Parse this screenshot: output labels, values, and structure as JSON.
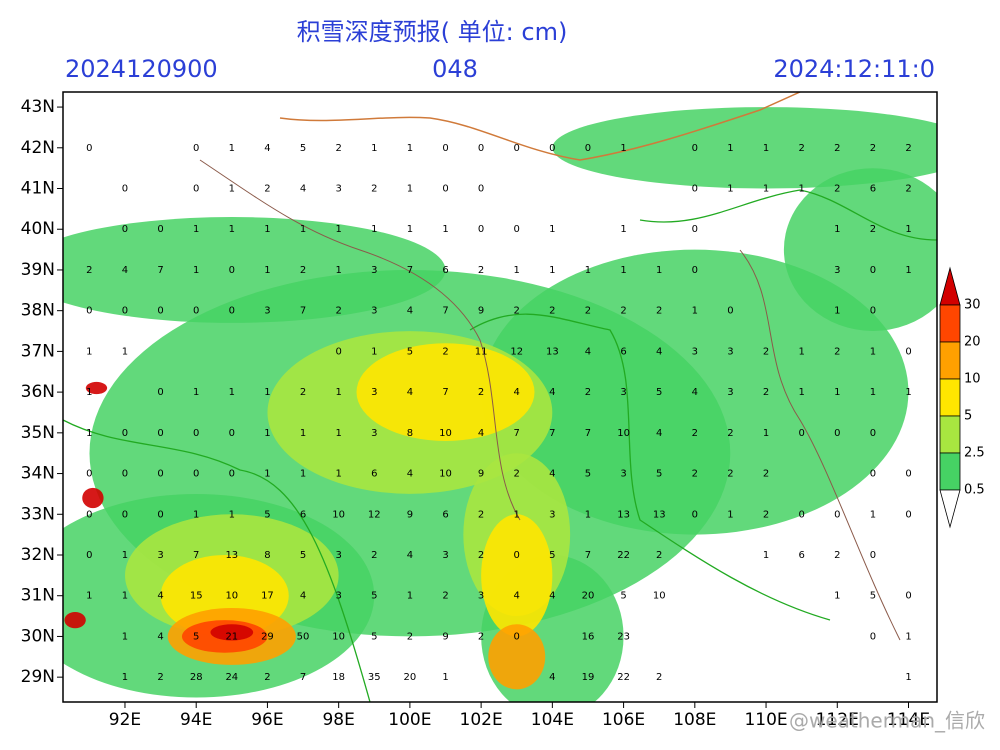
{
  "header": {
    "title": "积雪深度预报( 单位: cm)",
    "init_time": "2024120900",
    "lead_hours": "048",
    "valid_time": "2024:12:11:0"
  },
  "map": {
    "lonlim": [
      90.26,
      114.8
    ],
    "latlim": [
      28.39,
      43.37
    ],
    "lonticks": [
      {
        "value": 92,
        "label": "92E"
      },
      {
        "value": 94,
        "label": "94E"
      },
      {
        "value": 96,
        "label": "96E"
      },
      {
        "value": 98,
        "label": "98E"
      },
      {
        "value": 100,
        "label": "100E"
      },
      {
        "value": 102,
        "label": "102E"
      },
      {
        "value": 104,
        "label": "104E"
      },
      {
        "value": 106,
        "label": "106E"
      },
      {
        "value": 108,
        "label": "108E"
      },
      {
        "value": 110,
        "label": "110E"
      },
      {
        "value": 112,
        "label": "112E"
      },
      {
        "value": 114,
        "label": "114E"
      }
    ],
    "latticks": [
      {
        "value": 29,
        "label": "29N"
      },
      {
        "value": 30,
        "label": "30N"
      },
      {
        "value": 31,
        "label": "31N"
      },
      {
        "value": 32,
        "label": "32N"
      },
      {
        "value": 33,
        "label": "33N"
      },
      {
        "value": 34,
        "label": "34N"
      },
      {
        "value": 35,
        "label": "35N"
      },
      {
        "value": 36,
        "label": "36N"
      },
      {
        "value": 37,
        "label": "37N"
      },
      {
        "value": 38,
        "label": "38N"
      },
      {
        "value": 39,
        "label": "39N"
      },
      {
        "value": 40,
        "label": "40N"
      },
      {
        "value": 41,
        "label": "41N"
      },
      {
        "value": 42,
        "label": "42N"
      },
      {
        "value": 43,
        "label": "43N"
      }
    ],
    "grid": true,
    "station_lon_start": 91,
    "stations": [
      {
        "lat": 42,
        "values": [
          0,
          null,
          null,
          0,
          1,
          4,
          5,
          2,
          1,
          1,
          0,
          0,
          0,
          0,
          0,
          1,
          null,
          0,
          1,
          1,
          2,
          2,
          2,
          2
        ]
      },
      {
        "lat": 41,
        "values": [
          null,
          0,
          null,
          0,
          1,
          2,
          4,
          3,
          2,
          1,
          0,
          0,
          null,
          null,
          null,
          null,
          null,
          0,
          1,
          1,
          1,
          2,
          6,
          2
        ]
      },
      {
        "lat": 40,
        "values": [
          null,
          0,
          0,
          1,
          1,
          1,
          1,
          1,
          1,
          1,
          1,
          0,
          0,
          1,
          null,
          1,
          null,
          0,
          null,
          null,
          null,
          1,
          2,
          1
        ]
      },
      {
        "lat": 39,
        "values": [
          2,
          4,
          7,
          1,
          0,
          1,
          2,
          1,
          3,
          7,
          6,
          2,
          1,
          1,
          1,
          1,
          1,
          0,
          null,
          null,
          null,
          3,
          0,
          1
        ]
      },
      {
        "lat": 38,
        "values": [
          0,
          0,
          0,
          0,
          0,
          3,
          7,
          2,
          3,
          4,
          7,
          9,
          2,
          2,
          2,
          2,
          2,
          1,
          0,
          null,
          null,
          1,
          0,
          null
        ]
      },
      {
        "lat": 37,
        "values": [
          1,
          1,
          null,
          null,
          null,
          null,
          null,
          0,
          1,
          5,
          2,
          11,
          12,
          13,
          4,
          6,
          4,
          3,
          3,
          2,
          1,
          2,
          1,
          0
        ]
      },
      {
        "lat": 36,
        "values": [
          1,
          null,
          0,
          1,
          1,
          1,
          2,
          1,
          3,
          4,
          7,
          2,
          4,
          4,
          2,
          3,
          5,
          4,
          3,
          2,
          1,
          1,
          1,
          1
        ]
      },
      {
        "lat": 35,
        "values": [
          1,
          0,
          0,
          0,
          0,
          1,
          1,
          1,
          3,
          8,
          10,
          4,
          7,
          7,
          7,
          10,
          4,
          2,
          2,
          1,
          0,
          0,
          0,
          null
        ]
      },
      {
        "lat": 34,
        "values": [
          0,
          0,
          0,
          0,
          0,
          1,
          1,
          1,
          6,
          4,
          10,
          9,
          2,
          4,
          5,
          3,
          5,
          2,
          2,
          2,
          null,
          null,
          0,
          0
        ]
      },
      {
        "lat": 33,
        "values": [
          0,
          0,
          0,
          1,
          1,
          5,
          6,
          10,
          12,
          9,
          6,
          2,
          1,
          3,
          1,
          13,
          13,
          0,
          1,
          2,
          0,
          0,
          1,
          0
        ]
      },
      {
        "lat": 32,
        "values": [
          0,
          1,
          3,
          7,
          13,
          8,
          5,
          3,
          2,
          4,
          3,
          2,
          0,
          5,
          7,
          22,
          2,
          null,
          null,
          1,
          6,
          2,
          0,
          null
        ]
      },
      {
        "lat": 31,
        "values": [
          1,
          1,
          4,
          15,
          10,
          17,
          4,
          3,
          5,
          1,
          2,
          3,
          4,
          4,
          20,
          5,
          10,
          null,
          null,
          null,
          null,
          1,
          5,
          0
        ]
      },
      {
        "lat": 30,
        "values": [
          null,
          1,
          4,
          5,
          21,
          29,
          50,
          10,
          5,
          2,
          9,
          2,
          0,
          null,
          16,
          23,
          null,
          null,
          null,
          null,
          null,
          null,
          0,
          1
        ]
      },
      {
        "lat": 29,
        "values": [
          null,
          1,
          2,
          28,
          24,
          2,
          7,
          18,
          35,
          20,
          1,
          null,
          null,
          4,
          19,
          22,
          2,
          null,
          null,
          null,
          null,
          null,
          null,
          1
        ]
      }
    ]
  },
  "colorbar": {
    "levels": [
      30,
      20,
      10,
      5,
      2.5,
      0.5
    ],
    "colors": [
      "#d20000",
      "#ff4600",
      "#ffa000",
      "#ffe600",
      "#a8e640",
      "#46d264",
      "#ffffff"
    ]
  },
  "watermark": "@weatherman_信欣"
}
